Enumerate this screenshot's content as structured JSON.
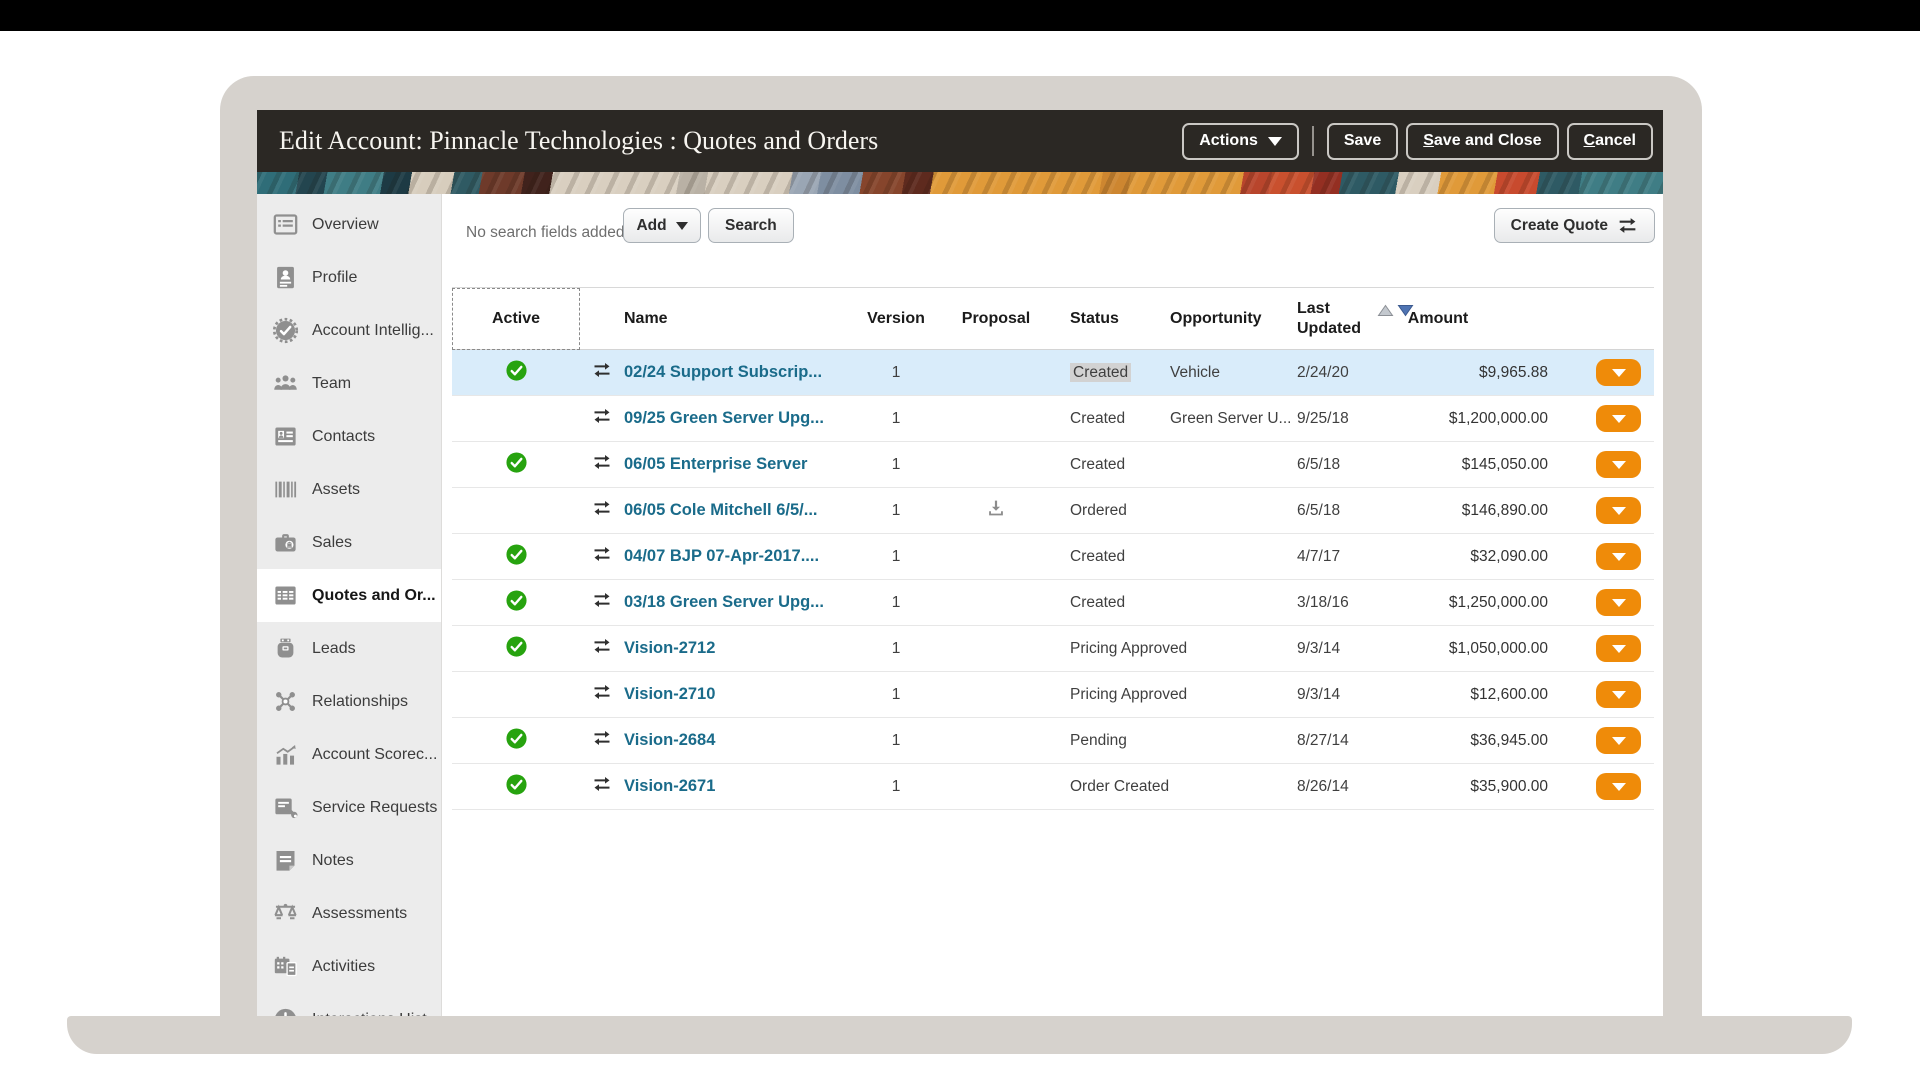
{
  "header": {
    "title": "Edit Account: Pinnacle Technologies : Quotes and Orders",
    "buttons": {
      "actions": "Actions",
      "save": "Save",
      "save_and_close": "Save and Close",
      "cancel": "Cancel"
    }
  },
  "sidebar": {
    "items": [
      {
        "label": "Overview",
        "icon": "overview-icon",
        "selected": false
      },
      {
        "label": "Profile",
        "icon": "profile-icon",
        "selected": false
      },
      {
        "label": "Account Intellig...",
        "icon": "account-intelligence-icon",
        "selected": false
      },
      {
        "label": "Team",
        "icon": "team-icon",
        "selected": false
      },
      {
        "label": "Contacts",
        "icon": "contacts-icon",
        "selected": false
      },
      {
        "label": "Assets",
        "icon": "assets-icon",
        "selected": false
      },
      {
        "label": "Sales",
        "icon": "sales-icon",
        "selected": false
      },
      {
        "label": "Quotes and Or...",
        "icon": "quotes-orders-icon",
        "selected": true
      },
      {
        "label": "Leads",
        "icon": "leads-icon",
        "selected": false
      },
      {
        "label": "Relationships",
        "icon": "relationships-icon",
        "selected": false
      },
      {
        "label": "Account Scorec...",
        "icon": "account-scorecard-icon",
        "selected": false
      },
      {
        "label": "Service Requests",
        "icon": "service-requests-icon",
        "selected": false
      },
      {
        "label": "Notes",
        "icon": "notes-icon",
        "selected": false
      },
      {
        "label": "Assessments",
        "icon": "assessments-icon",
        "selected": false
      },
      {
        "label": "Activities",
        "icon": "activities-icon",
        "selected": false
      },
      {
        "label": "Interactions Hist...",
        "icon": "interactions-history-icon",
        "selected": false
      }
    ]
  },
  "toolbar": {
    "hint": "No search fields added.",
    "add": "Add",
    "search": "Search",
    "create_quote": "Create Quote"
  },
  "table": {
    "columns": {
      "active": "Active",
      "name": "Name",
      "version": "Version",
      "proposal": "Proposal",
      "status": "Status",
      "opportunity": "Opportunity",
      "last_updated": "Last Updated",
      "amount": "Amount"
    },
    "sort": {
      "column": "Last Updated",
      "direction": "descending"
    },
    "rows": [
      {
        "active": true,
        "name": "02/24 Support Subscrip...",
        "version": "1",
        "proposal": false,
        "status": "Created",
        "status_highlight": true,
        "opportunity": "Vehicle",
        "last_updated": "2/24/20",
        "amount": "$9,965.88",
        "selected": true
      },
      {
        "active": false,
        "name": "09/25 Green Server Upg...",
        "version": "1",
        "proposal": false,
        "status": "Created",
        "status_highlight": false,
        "opportunity": "Green Server U...",
        "last_updated": "9/25/18",
        "amount": "$1,200,000.00",
        "selected": false
      },
      {
        "active": true,
        "name": "06/05 Enterprise Server",
        "version": "1",
        "proposal": false,
        "status": "Created",
        "status_highlight": false,
        "opportunity": "",
        "last_updated": "6/5/18",
        "amount": "$145,050.00",
        "selected": false
      },
      {
        "active": false,
        "name": "06/05 Cole Mitchell 6/5/...",
        "version": "1",
        "proposal": true,
        "status": "Ordered",
        "status_highlight": false,
        "opportunity": "",
        "last_updated": "6/5/18",
        "amount": "$146,890.00",
        "selected": false
      },
      {
        "active": true,
        "name": "04/07 BJP 07-Apr-2017....",
        "version": "1",
        "proposal": false,
        "status": "Created",
        "status_highlight": false,
        "opportunity": "",
        "last_updated": "4/7/17",
        "amount": "$32,090.00",
        "selected": false
      },
      {
        "active": true,
        "name": "03/18 Green Server Upg...",
        "version": "1",
        "proposal": false,
        "status": "Created",
        "status_highlight": false,
        "opportunity": "",
        "last_updated": "3/18/16",
        "amount": "$1,250,000.00",
        "selected": false
      },
      {
        "active": true,
        "name": "Vision-2712",
        "version": "1",
        "proposal": false,
        "status": "Pricing Approved",
        "status_highlight": false,
        "opportunity": "",
        "last_updated": "9/3/14",
        "amount": "$1,050,000.00",
        "selected": false
      },
      {
        "active": false,
        "name": "Vision-2710",
        "version": "1",
        "proposal": false,
        "status": "Pricing Approved",
        "status_highlight": false,
        "opportunity": "",
        "last_updated": "9/3/14",
        "amount": "$12,600.00",
        "selected": false
      },
      {
        "active": true,
        "name": "Vision-2684",
        "version": "1",
        "proposal": false,
        "status": "Pending",
        "status_highlight": false,
        "opportunity": "",
        "last_updated": "8/27/14",
        "amount": "$36,945.00",
        "selected": false
      },
      {
        "active": true,
        "name": "Vision-2671",
        "version": "1",
        "proposal": false,
        "status": "Order Created",
        "status_highlight": false,
        "opportunity": "",
        "last_updated": "8/26/14",
        "amount": "$35,900.00",
        "selected": false
      }
    ]
  },
  "colors": {
    "header_dark": "#2B2824",
    "frame_gray": "#D6D2CD",
    "accent_orange": "#EF8B09",
    "active_green": "#27A30F",
    "link_blue": "#1A6B8A",
    "selected_row_blue": "#D9ECFA"
  }
}
